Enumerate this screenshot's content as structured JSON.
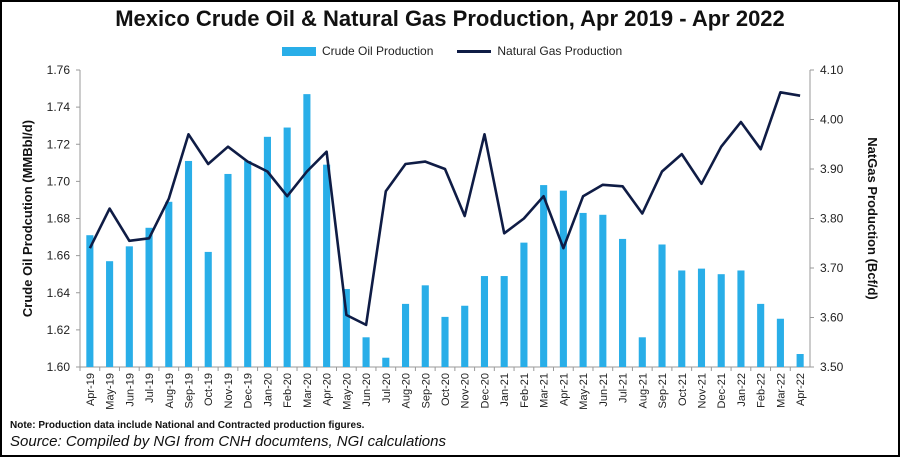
{
  "chart_data": {
    "type": "bar+line",
    "title": "Mexico Crude Oil & Natural Gas Production, Apr 2019 - Apr 2022",
    "categories": [
      "Apr-19",
      "May-19",
      "Jun-19",
      "Jul-19",
      "Aug-19",
      "Sep-19",
      "Oct-19",
      "Nov-19",
      "Dec-19",
      "Jan-20",
      "Feb-20",
      "Mar-20",
      "Apr-20",
      "May-20",
      "Jun-20",
      "Jul-20",
      "Aug-20",
      "Sep-20",
      "Oct-20",
      "Nov-20",
      "Dec-20",
      "Jan-21",
      "Feb-21",
      "Mar-21",
      "Apr-21",
      "May-21",
      "Jun-21",
      "Jul-21",
      "Aug-21",
      "Sep-21",
      "Oct-21",
      "Nov-21",
      "Dec-21",
      "Jan-22",
      "Feb-22",
      "Mar-22",
      "Apr-22"
    ],
    "series": [
      {
        "name": "Crude Oil Production",
        "type": "bar",
        "axis": "left",
        "color": "#29aee8",
        "values": [
          1.671,
          1.657,
          1.665,
          1.675,
          1.689,
          1.711,
          1.662,
          1.704,
          1.711,
          1.724,
          1.729,
          1.747,
          1.709,
          1.642,
          1.616,
          1.605,
          1.634,
          1.644,
          1.627,
          1.633,
          1.649,
          1.649,
          1.667,
          1.698,
          1.695,
          1.683,
          1.682,
          1.669,
          1.616,
          1.666,
          1.652,
          1.653,
          1.65,
          1.652,
          1.634,
          1.626,
          1.607
        ]
      },
      {
        "name": "Natural Gas Production",
        "type": "line",
        "axis": "right",
        "color": "#0f1c45",
        "values": [
          3.74,
          3.82,
          3.755,
          3.76,
          3.84,
          3.97,
          3.91,
          3.945,
          3.915,
          3.895,
          3.845,
          3.895,
          3.935,
          3.605,
          3.585,
          3.855,
          3.91,
          3.915,
          3.9,
          3.805,
          3.97,
          3.77,
          3.8,
          3.845,
          3.74,
          3.845,
          3.868,
          3.865,
          3.81,
          3.895,
          3.93,
          3.87,
          3.945,
          3.995,
          3.94,
          4.055,
          4.048
        ]
      }
    ],
    "ylabel": "Crude Oil Prodcution (MMBbl/d)",
    "ylabel_right": "NatGas Production (Bcf/d)",
    "ylim": [
      1.6,
      1.76
    ],
    "ylim_right": [
      3.5,
      4.1
    ],
    "yticks": [
      "1.60",
      "1.62",
      "1.64",
      "1.66",
      "1.68",
      "1.70",
      "1.72",
      "1.74",
      "1.76"
    ],
    "yticks_right": [
      "3.50",
      "3.60",
      "3.70",
      "3.80",
      "3.90",
      "4.00",
      "4.10"
    ],
    "legend": [
      "Crude Oil Production",
      "Natural Gas Production"
    ],
    "legend_position": "top-center",
    "grid": false
  },
  "note": "Note: Production data include National and Contracted production figures.",
  "source": "Source: Compiled by NGI from CNH documtens, NGI calculations"
}
